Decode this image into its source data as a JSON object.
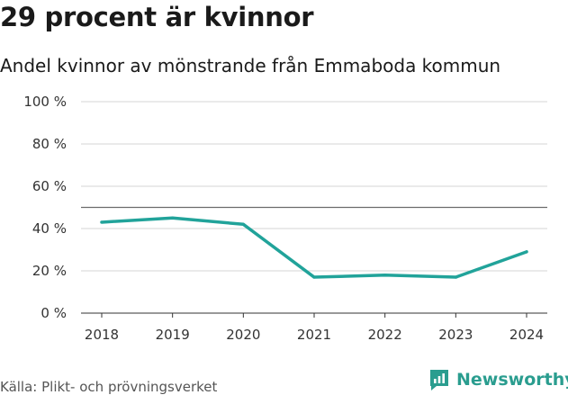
{
  "title": "29 procent är kvinnor",
  "subtitle": "Andel kvinnor av mönstrande från Emmaboda kommun",
  "source": "Källa: Plikt- och prövningsverket",
  "brand": "Newsworthy",
  "colors": {
    "line": "#21a39a",
    "brand": "#2a9d8f",
    "grid": "#d6d6d6",
    "reference": "#6b6b6b"
  },
  "chart_data": {
    "type": "line",
    "title": "29 procent är kvinnor",
    "subtitle": "Andel kvinnor av mönstrande från Emmaboda kommun",
    "xlabel": "",
    "ylabel": "",
    "x": [
      "2018",
      "2019",
      "2020",
      "2021",
      "2022",
      "2023",
      "2024"
    ],
    "series": [
      {
        "name": "Andel kvinnor",
        "values": [
          43,
          45,
          42,
          17,
          18,
          17,
          29
        ]
      }
    ],
    "ylim": [
      0,
      100
    ],
    "yticks": [
      0,
      20,
      40,
      60,
      80,
      100
    ],
    "ytick_labels": [
      "0 %",
      "20 %",
      "40 %",
      "60 %",
      "80 %",
      "100 %"
    ],
    "reference_line": 50,
    "grid": true
  }
}
